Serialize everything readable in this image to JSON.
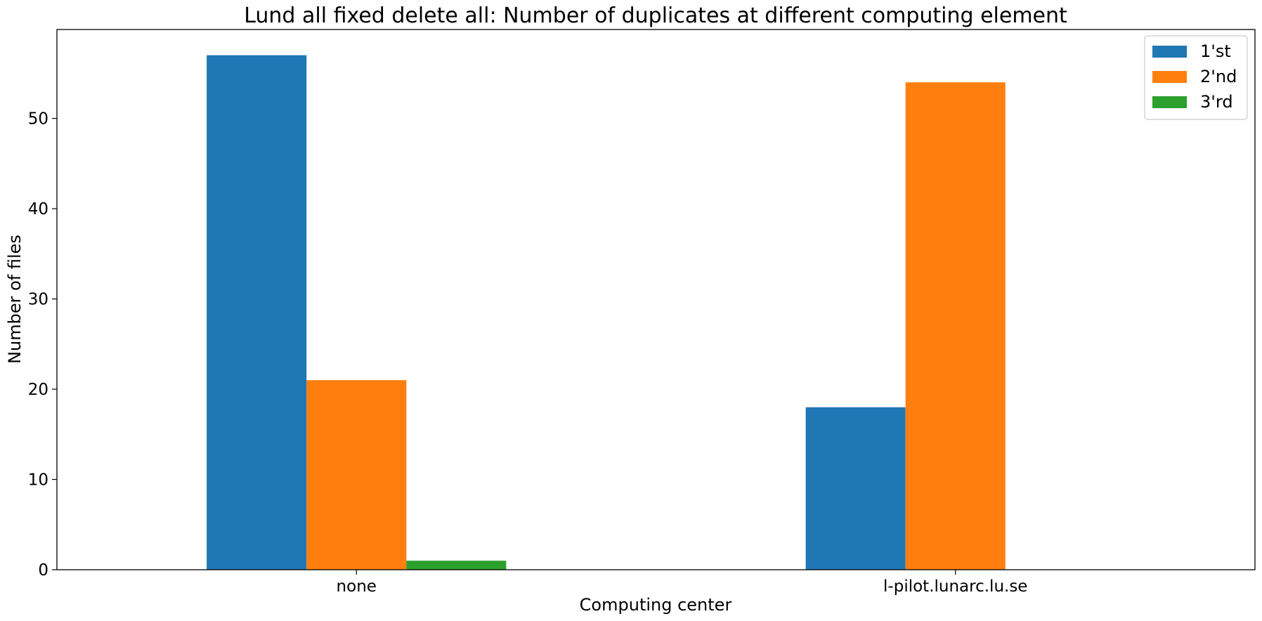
{
  "chart_data": {
    "type": "bar",
    "title": "Lund all fixed delete all: Number of duplicates at different computing element",
    "xlabel": "Computing center",
    "ylabel": "Number of files",
    "categories": [
      "none",
      "l-pilot.lunarc.lu.se"
    ],
    "series": [
      {
        "name": "1'st",
        "values": [
          57,
          18
        ],
        "color": "#1f77b4"
      },
      {
        "name": "2'nd",
        "values": [
          21,
          54
        ],
        "color": "#ff7f0e"
      },
      {
        "name": "3'rd",
        "values": [
          1,
          0
        ],
        "color": "#2ca02c"
      }
    ],
    "ylim": [
      0,
      59.85
    ],
    "yticks": [
      0,
      10,
      20,
      30,
      40,
      50
    ],
    "grid": false,
    "legend_position": "top-right"
  }
}
